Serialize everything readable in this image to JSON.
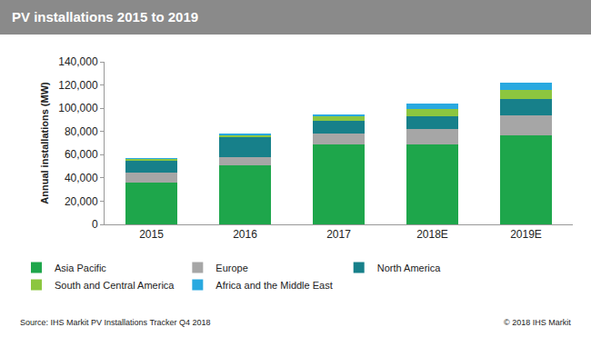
{
  "chart_data": {
    "type": "bar",
    "title": "PV installations 2015 to 2019",
    "y_label": "Annual installations (MW)",
    "categories": [
      "2015",
      "2016",
      "2017",
      "2018E",
      "2019E"
    ],
    "series": [
      {
        "name": "Asia Pacific",
        "color": "#1ea64b",
        "values": [
          36000,
          51000,
          69000,
          69000,
          77000
        ]
      },
      {
        "name": "Europe",
        "color": "#a6a6a6",
        "values": [
          8500,
          7000,
          9500,
          13000,
          17000
        ]
      },
      {
        "name": "North America",
        "color": "#17808a",
        "values": [
          10000,
          17000,
          11000,
          11000,
          14000
        ]
      },
      {
        "name": "South and Central America",
        "color": "#8cc63f",
        "values": [
          1500,
          2000,
          3500,
          6000,
          8000
        ]
      },
      {
        "name": "Africa and the Middle East",
        "color": "#29a9e0",
        "values": [
          1000,
          1500,
          1500,
          5000,
          6000
        ]
      }
    ],
    "stacked": true,
    "ylim": [
      0,
      140000
    ],
    "yticks": [
      0,
      {
        "value": 20000,
        "label": "20,000"
      },
      {
        "value": 40000,
        "label": "40,000"
      },
      {
        "value": 60000,
        "label": "60,000"
      },
      {
        "value": 80000,
        "label": "80,000"
      },
      {
        "value": 100000,
        "label": "100,000"
      },
      {
        "value": 120000,
        "label": "120,000"
      },
      {
        "value": 140000,
        "label": "140,000"
      }
    ],
    "grid": false,
    "legend": "bottom",
    "annotations": [
      "Source: IHS Markit PV Installations Tracker Q4 2018",
      "© 2018 IHS Markit"
    ]
  }
}
